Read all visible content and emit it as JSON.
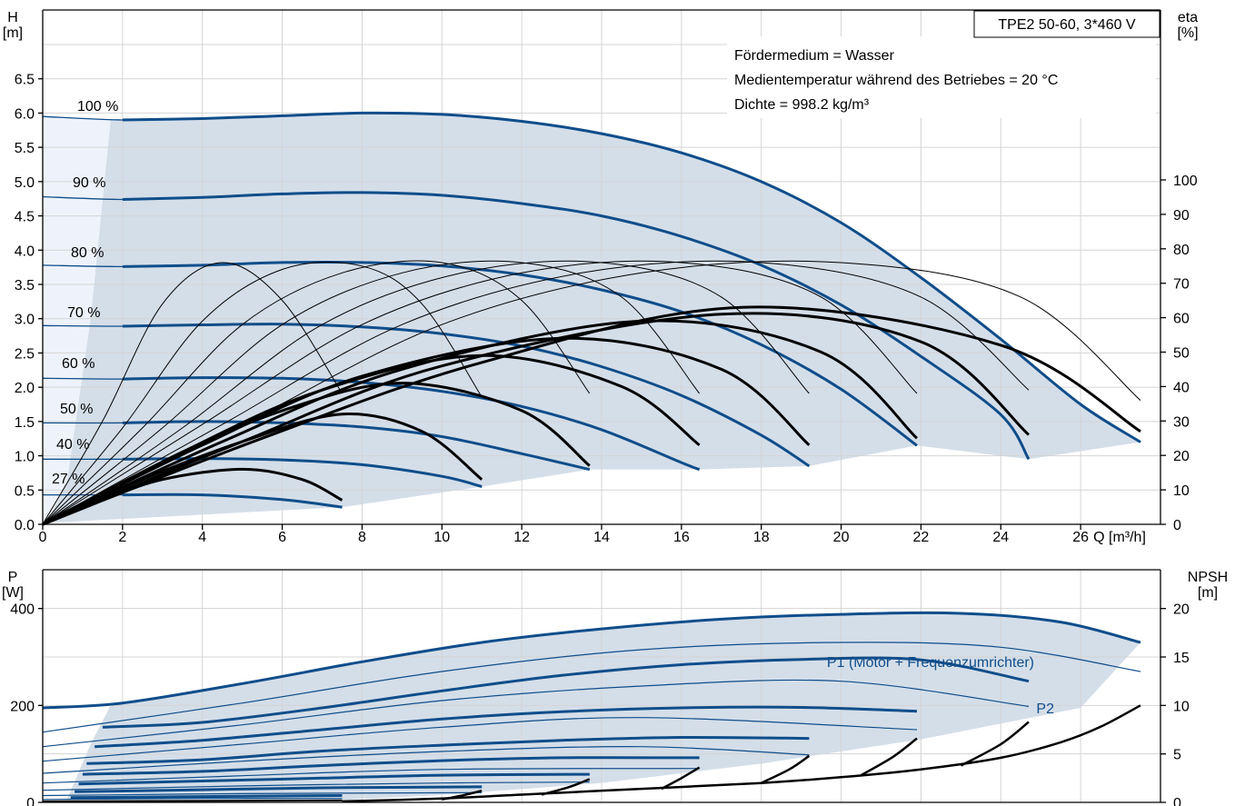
{
  "chart_data": [
    {
      "type": "line",
      "title": "TPE2 50-60, 3*460 V",
      "ylabel_left": "H\n[m]",
      "ylabel_right": "eta\n[%]",
      "xlabel": "Q [m³/h]",
      "xlim": [
        0,
        28
      ],
      "ylim": [
        0,
        7
      ],
      "eta_lim": [
        0,
        100
      ],
      "x_ticks": [
        "0",
        "2",
        "4",
        "6",
        "8",
        "10",
        "12",
        "14",
        "16",
        "18",
        "20",
        "22",
        "24",
        "26"
      ],
      "y_ticks": [
        "0.0",
        "0.5",
        "1.0",
        "1.5",
        "2.0",
        "2.5",
        "3.0",
        "3.5",
        "4.0",
        "4.5",
        "5.0",
        "5.5",
        "6.0",
        "6.5"
      ],
      "eta_ticks": [
        "0",
        "10",
        "20",
        "30",
        "40",
        "50",
        "60",
        "70",
        "80",
        "90",
        "100"
      ],
      "info_lines": [
        "Fördermedium = Wasser",
        "Medientemperatur während des Betriebes = 20 °C",
        "Dichte = 998.2 kg/m³"
      ],
      "grid": true,
      "colors": {
        "head": "#0f4d8a",
        "area": "#d4dee9",
        "area_low": "#eef3fb",
        "eta": "#000000"
      },
      "head_curves": [
        {
          "label": "100 %",
          "x": [
            0,
            2,
            4,
            6,
            8,
            10,
            12,
            14,
            16,
            18,
            20,
            22,
            24,
            26,
            27.5
          ],
          "y": [
            5.95,
            5.9,
            5.92,
            5.96,
            6.0,
            5.98,
            5.88,
            5.7,
            5.42,
            5.0,
            4.4,
            3.6,
            2.7,
            1.75,
            1.2
          ]
        },
        {
          "label": "90 %",
          "x": [
            0,
            2,
            4,
            6,
            8,
            10,
            12,
            14,
            16,
            18,
            20,
            22,
            24,
            24.7
          ],
          "y": [
            4.78,
            4.74,
            4.77,
            4.82,
            4.84,
            4.8,
            4.68,
            4.5,
            4.2,
            3.78,
            3.2,
            2.45,
            1.6,
            0.95
          ]
        },
        {
          "label": "80 %",
          "x": [
            0,
            2,
            4,
            6,
            8,
            10,
            12,
            14,
            16,
            18,
            20,
            21.9
          ],
          "y": [
            3.78,
            3.76,
            3.78,
            3.82,
            3.82,
            3.77,
            3.64,
            3.42,
            3.1,
            2.62,
            1.97,
            1.15
          ]
        },
        {
          "label": "70 %",
          "x": [
            0,
            2,
            4,
            6,
            8,
            10,
            12,
            14,
            16,
            18,
            19.2
          ],
          "y": [
            2.9,
            2.89,
            2.91,
            2.92,
            2.88,
            2.78,
            2.6,
            2.3,
            1.88,
            1.3,
            0.85
          ]
        },
        {
          "label": "60 %",
          "x": [
            0,
            2,
            4,
            6,
            8,
            10,
            12,
            14,
            16,
            16.45
          ],
          "y": [
            2.13,
            2.12,
            2.14,
            2.13,
            2.07,
            1.94,
            1.72,
            1.38,
            0.9,
            0.8
          ]
        },
        {
          "label": "50 %",
          "x": [
            0,
            2,
            4,
            6,
            8,
            10,
            12,
            13.7
          ],
          "y": [
            1.48,
            1.48,
            1.5,
            1.48,
            1.42,
            1.28,
            1.03,
            0.8
          ]
        },
        {
          "label": "40 %",
          "x": [
            0,
            2,
            4,
            6,
            8,
            10,
            11
          ],
          "y": [
            0.95,
            0.95,
            0.96,
            0.94,
            0.87,
            0.7,
            0.55
          ]
        },
        {
          "label": "27 %",
          "x": [
            0,
            2,
            4,
            6,
            7.5
          ],
          "y": [
            0.43,
            0.43,
            0.43,
            0.36,
            0.25
          ]
        }
      ],
      "eta_curves": [
        {
          "x": [
            0,
            1.5,
            3,
            4.5,
            6,
            7.5
          ],
          "eta": [
            0,
            30,
            64,
            76,
            65,
            38
          ]
        },
        {
          "x": [
            0,
            2,
            4,
            6,
            8,
            9.5,
            11
          ],
          "eta": [
            0,
            28,
            59,
            74,
            75,
            64,
            37
          ]
        },
        {
          "x": [
            0,
            2.5,
            5,
            7.5,
            10,
            12,
            13.7
          ],
          "eta": [
            0,
            28,
            58,
            73,
            76,
            65,
            38
          ]
        },
        {
          "x": [
            0,
            3,
            6,
            9,
            12,
            14.5,
            16.45
          ],
          "eta": [
            0,
            28,
            58,
            73,
            76,
            66,
            38
          ]
        },
        {
          "x": [
            0,
            3.5,
            7,
            10.5,
            14,
            17,
            19.2
          ],
          "eta": [
            0,
            28,
            58,
            73,
            76,
            66,
            38
          ]
        },
        {
          "x": [
            0,
            4,
            8,
            12,
            16,
            19.5,
            21.9
          ],
          "eta": [
            0,
            29,
            58,
            73,
            76,
            66,
            38
          ]
        },
        {
          "x": [
            0,
            4.5,
            9,
            13.5,
            18,
            22,
            24.7
          ],
          "eta": [
            0,
            29,
            58,
            73,
            76,
            66,
            39
          ]
        },
        {
          "x": [
            0,
            5,
            10,
            15,
            20,
            24.5,
            27.5
          ],
          "eta": [
            0,
            29,
            58,
            73,
            76,
            66,
            36
          ]
        }
      ],
      "eta_bold_curves": [
        {
          "x": [
            0,
            1.5,
            3,
            5,
            6.5,
            7.5
          ],
          "eta": [
            0,
            7,
            13,
            16,
            13,
            7
          ]
        },
        {
          "x": [
            0,
            2.5,
            5,
            7.5,
            9.5,
            11
          ],
          "eta": [
            0,
            13,
            24,
            32,
            27,
            13
          ]
        },
        {
          "x": [
            0,
            3,
            6,
            9,
            12,
            13.7
          ],
          "eta": [
            0,
            18,
            33,
            41,
            33,
            17
          ]
        },
        {
          "x": [
            0,
            3.5,
            7,
            11,
            14.5,
            16.45
          ],
          "eta": [
            0,
            21,
            39,
            49,
            40,
            23
          ]
        },
        {
          "x": [
            0,
            4,
            8,
            13,
            17,
            19.2
          ],
          "eta": [
            0,
            23,
            43,
            54,
            45,
            23
          ]
        },
        {
          "x": [
            0,
            4.5,
            9,
            15,
            19.5,
            21.9
          ],
          "eta": [
            0,
            24,
            45,
            59,
            50,
            25
          ]
        },
        {
          "x": [
            0,
            5,
            10,
            17,
            22,
            24.7
          ],
          "eta": [
            0,
            24,
            46,
            61,
            53,
            26
          ]
        },
        {
          "x": [
            0,
            5.5,
            11,
            17.5,
            24,
            27.5
          ],
          "eta": [
            0,
            25,
            47,
            63,
            52,
            27
          ]
        }
      ]
    },
    {
      "type": "line",
      "ylabel_left": "P\n[W]",
      "ylabel_right": "NPSH\n[m]",
      "xlim": [
        0,
        28
      ],
      "ylim": [
        0,
        480
      ],
      "npsh_lim": [
        0,
        24
      ],
      "y_ticks": [
        "0",
        "200",
        "400"
      ],
      "npsh_ticks": [
        "0",
        "5",
        "10",
        "15",
        "20"
      ],
      "series_labels": {
        "p1": "P1 (Motor + Frequenzumrichter)",
        "p2": "P2"
      },
      "p1_curves": [
        {
          "x": [
            0,
            2,
            5,
            8,
            11,
            14,
            17,
            20,
            23,
            25.5,
            27.5
          ],
          "y": [
            195,
            205,
            245,
            290,
            330,
            358,
            378,
            388,
            390,
            372,
            330
          ]
        },
        {
          "x": [
            1.5,
            4,
            7,
            10,
            13,
            16,
            19,
            22,
            24.7
          ],
          "y": [
            155,
            165,
            195,
            230,
            262,
            284,
            295,
            294,
            250
          ]
        },
        {
          "x": [
            1.3,
            4,
            7,
            10,
            13,
            16,
            19,
            21.9
          ],
          "y": [
            115,
            128,
            150,
            172,
            187,
            195,
            196,
            188
          ]
        },
        {
          "x": [
            1.1,
            4,
            7,
            10,
            13,
            16,
            19.2
          ],
          "y": [
            80,
            88,
            106,
            118,
            128,
            134,
            132
          ]
        },
        {
          "x": [
            1,
            4,
            7,
            10,
            13,
            16.45
          ],
          "y": [
            58,
            64,
            76,
            86,
            92,
            92
          ]
        },
        {
          "x": [
            0.9,
            4,
            7,
            10,
            13.7
          ],
          "y": [
            38,
            44,
            50,
            56,
            58
          ]
        },
        {
          "x": [
            0.8,
            4,
            7,
            11
          ],
          "y": [
            22,
            26,
            30,
            32
          ]
        },
        {
          "x": [
            0.7,
            4,
            7.5
          ],
          "y": [
            10,
            12,
            14
          ]
        }
      ],
      "p2_curves": [
        {
          "x": [
            0,
            5,
            10,
            15,
            20,
            24,
            27.5
          ],
          "y": [
            145,
            205,
            270,
            315,
            330,
            320,
            270
          ]
        },
        {
          "x": [
            0,
            5,
            10,
            15,
            20,
            24.7
          ],
          "y": [
            115,
            160,
            210,
            240,
            250,
            198
          ]
        },
        {
          "x": [
            0,
            5,
            10,
            15,
            21.9
          ],
          "y": [
            85,
            120,
            155,
            175,
            150
          ]
        },
        {
          "x": [
            0,
            5,
            10,
            15,
            19.2
          ],
          "y": [
            60,
            85,
            105,
            115,
            98
          ]
        },
        {
          "x": [
            0,
            5,
            10,
            16.45
          ],
          "y": [
            40,
            55,
            68,
            70
          ]
        },
        {
          "x": [
            0,
            5,
            10,
            13.7
          ],
          "y": [
            25,
            34,
            40,
            42
          ]
        },
        {
          "x": [
            0,
            5,
            11
          ],
          "y": [
            14,
            18,
            20
          ]
        },
        {
          "x": [
            0,
            4,
            7.5
          ],
          "y": [
            6,
            8,
            8
          ]
        }
      ],
      "npsh_curves": [
        {
          "x": [
            7.5,
            10,
            12,
            15,
            18,
            20,
            22,
            24,
            25.5,
            26.5,
            27.5
          ],
          "npsh": [
            0.1,
            0.4,
            0.8,
            1.4,
            2.0,
            2.6,
            3.4,
            4.6,
            6.2,
            7.8,
            10
          ]
        },
        {
          "x": [
            10,
            10.5,
            11
          ],
          "npsh": [
            0.3,
            0.7,
            1.2
          ]
        },
        {
          "x": [
            12.5,
            13.2,
            13.7
          ],
          "npsh": [
            0.8,
            1.6,
            2.4
          ]
        },
        {
          "x": [
            15.5,
            16,
            16.45
          ],
          "npsh": [
            1.4,
            2.5,
            3.6
          ]
        },
        {
          "x": [
            18,
            18.7,
            19.2
          ],
          "npsh": [
            2.0,
            3.4,
            4.8
          ]
        },
        {
          "x": [
            20.5,
            21.3,
            21.9
          ],
          "npsh": [
            2.8,
            4.7,
            6.6
          ]
        },
        {
          "x": [
            23,
            24,
            24.7
          ],
          "npsh": [
            3.8,
            6.0,
            8.3
          ]
        }
      ]
    }
  ]
}
